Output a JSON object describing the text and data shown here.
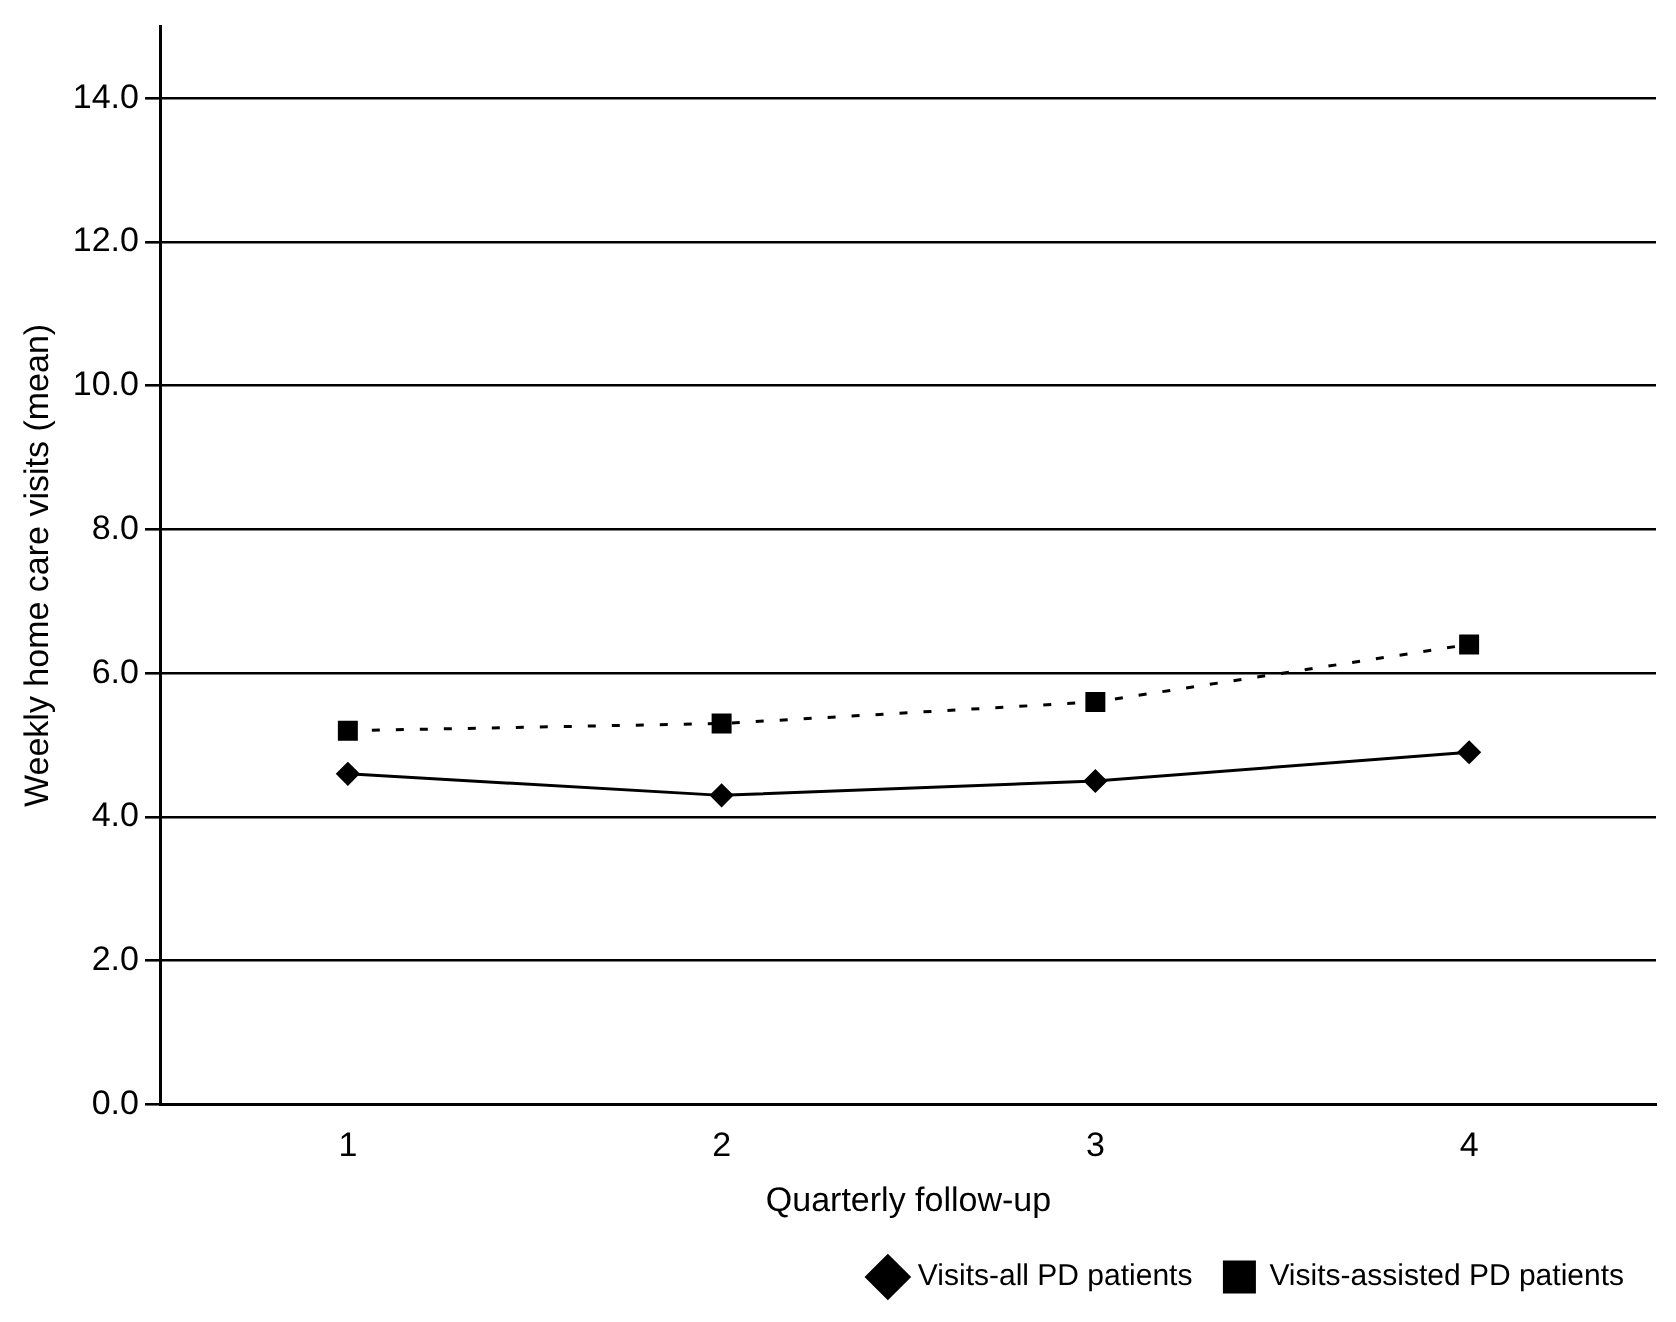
{
  "chart_data": {
    "type": "line",
    "xlabel": "Quarterly follow-up",
    "ylabel": "Weekly home care visits (mean)",
    "categories": [
      "1",
      "2",
      "3",
      "4"
    ],
    "series": [
      {
        "name": "Visits-all PD patients",
        "color": "#000000",
        "values": [
          4.6,
          4.3,
          4.5,
          4.9
        ],
        "marker": "diamond",
        "line_style": "solid"
      },
      {
        "name": "Visits-assisted PD patients",
        "color": "#000000",
        "values": [
          5.2,
          5.3,
          5.6,
          6.4
        ],
        "marker": "square",
        "line_style": "dotted"
      }
    ],
    "ylim": [
      0,
      15
    ],
    "yticks": [
      {
        "value": 0,
        "label": "0.0"
      },
      {
        "value": 2,
        "label": "2.0"
      },
      {
        "value": 4,
        "label": "4.0"
      },
      {
        "value": 6,
        "label": "6.0"
      },
      {
        "value": 8,
        "label": "8.0"
      },
      {
        "value": 10,
        "label": "10.0"
      },
      {
        "value": 12,
        "label": "12.0"
      },
      {
        "value": 14,
        "label": "14.0"
      }
    ],
    "grid": "y",
    "legend": "bottom"
  }
}
